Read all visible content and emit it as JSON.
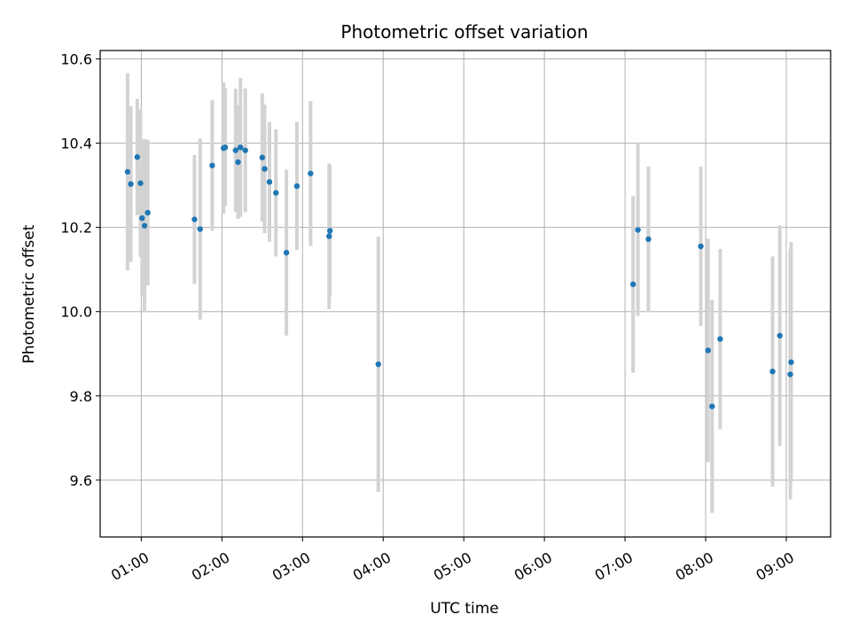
{
  "chart_data": {
    "type": "scatter",
    "title": "Photometric offset variation",
    "xlabel": "UTC time",
    "ylabel": "Photometric offset",
    "x_unit": "hours UTC",
    "xlim": [
      0.49,
      9.55
    ],
    "ylim": [
      9.465,
      10.62
    ],
    "x_ticks": [
      {
        "value": 1,
        "label": "01:00"
      },
      {
        "value": 2,
        "label": "02:00"
      },
      {
        "value": 3,
        "label": "03:00"
      },
      {
        "value": 4,
        "label": "04:00"
      },
      {
        "value": 5,
        "label": "05:00"
      },
      {
        "value": 6,
        "label": "06:00"
      },
      {
        "value": 7,
        "label": "07:00"
      },
      {
        "value": 8,
        "label": "08:00"
      },
      {
        "value": 9,
        "label": "09:00"
      }
    ],
    "y_ticks": [
      {
        "value": 9.6,
        "label": "9.6"
      },
      {
        "value": 9.8,
        "label": "9.8"
      },
      {
        "value": 10.0,
        "label": "10.0"
      },
      {
        "value": 10.2,
        "label": "10.2"
      },
      {
        "value": 10.4,
        "label": "10.4"
      },
      {
        "value": 10.6,
        "label": "10.6"
      }
    ],
    "grid": true,
    "colors": {
      "point": "#1f77b4",
      "errorbar": "#d3d3d3",
      "grid": "#b0b0b0",
      "axis": "#000000"
    },
    "series": [
      {
        "points": [
          {
            "x": 0.83,
            "y": 10.332,
            "lo": 10.098,
            "hi": 10.566
          },
          {
            "x": 0.87,
            "y": 10.303,
            "lo": 10.118,
            "hi": 10.488
          },
          {
            "x": 0.95,
            "y": 10.367,
            "lo": 10.229,
            "hi": 10.505
          },
          {
            "x": 0.99,
            "y": 10.305,
            "lo": 10.13,
            "hi": 10.48
          },
          {
            "x": 1.01,
            "y": 10.222,
            "lo": 10.037,
            "hi": 10.407
          },
          {
            "x": 1.04,
            "y": 10.204,
            "lo": 9.998,
            "hi": 10.41
          },
          {
            "x": 1.08,
            "y": 10.235,
            "lo": 10.062,
            "hi": 10.408
          },
          {
            "x": 1.66,
            "y": 10.219,
            "lo": 10.066,
            "hi": 10.372
          },
          {
            "x": 1.73,
            "y": 10.196,
            "lo": 9.981,
            "hi": 10.411
          },
          {
            "x": 1.88,
            "y": 10.347,
            "lo": 10.192,
            "hi": 10.502
          },
          {
            "x": 2.02,
            "y": 10.388,
            "lo": 10.232,
            "hi": 10.544
          },
          {
            "x": 2.04,
            "y": 10.39,
            "lo": 10.25,
            "hi": 10.53
          },
          {
            "x": 2.17,
            "y": 10.383,
            "lo": 10.237,
            "hi": 10.529
          },
          {
            "x": 2.2,
            "y": 10.355,
            "lo": 10.22,
            "hi": 10.49
          },
          {
            "x": 2.23,
            "y": 10.39,
            "lo": 10.225,
            "hi": 10.555
          },
          {
            "x": 2.29,
            "y": 10.383,
            "lo": 10.236,
            "hi": 10.53
          },
          {
            "x": 2.5,
            "y": 10.366,
            "lo": 10.214,
            "hi": 10.518
          },
          {
            "x": 2.53,
            "y": 10.339,
            "lo": 10.186,
            "hi": 10.492
          },
          {
            "x": 2.59,
            "y": 10.308,
            "lo": 10.166,
            "hi": 10.45
          },
          {
            "x": 2.67,
            "y": 10.282,
            "lo": 10.131,
            "hi": 10.433
          },
          {
            "x": 2.8,
            "y": 10.14,
            "lo": 9.943,
            "hi": 10.337
          },
          {
            "x": 2.93,
            "y": 10.298,
            "lo": 10.146,
            "hi": 10.45
          },
          {
            "x": 3.1,
            "y": 10.328,
            "lo": 10.156,
            "hi": 10.5
          },
          {
            "x": 3.33,
            "y": 10.179,
            "lo": 10.006,
            "hi": 10.352
          },
          {
            "x": 3.34,
            "y": 10.192,
            "lo": 10.037,
            "hi": 10.347
          },
          {
            "x": 3.94,
            "y": 9.875,
            "lo": 9.572,
            "hi": 10.178
          },
          {
            "x": 7.1,
            "y": 10.065,
            "lo": 9.855,
            "hi": 10.275
          },
          {
            "x": 7.16,
            "y": 10.194,
            "lo": 9.99,
            "hi": 10.398
          },
          {
            "x": 7.29,
            "y": 10.172,
            "lo": 9.999,
            "hi": 10.345
          },
          {
            "x": 7.94,
            "y": 10.155,
            "lo": 9.966,
            "hi": 10.344
          },
          {
            "x": 8.03,
            "y": 9.908,
            "lo": 9.643,
            "hi": 10.173
          },
          {
            "x": 8.08,
            "y": 9.775,
            "lo": 9.522,
            "hi": 10.028
          },
          {
            "x": 8.18,
            "y": 9.935,
            "lo": 9.721,
            "hi": 10.149
          },
          {
            "x": 8.83,
            "y": 9.858,
            "lo": 9.585,
            "hi": 10.131
          },
          {
            "x": 8.92,
            "y": 9.943,
            "lo": 9.681,
            "hi": 10.205
          },
          {
            "x": 9.05,
            "y": 9.851,
            "lo": 9.554,
            "hi": 10.148
          },
          {
            "x": 9.06,
            "y": 9.88,
            "lo": 9.595,
            "hi": 10.165
          }
        ]
      }
    ]
  }
}
